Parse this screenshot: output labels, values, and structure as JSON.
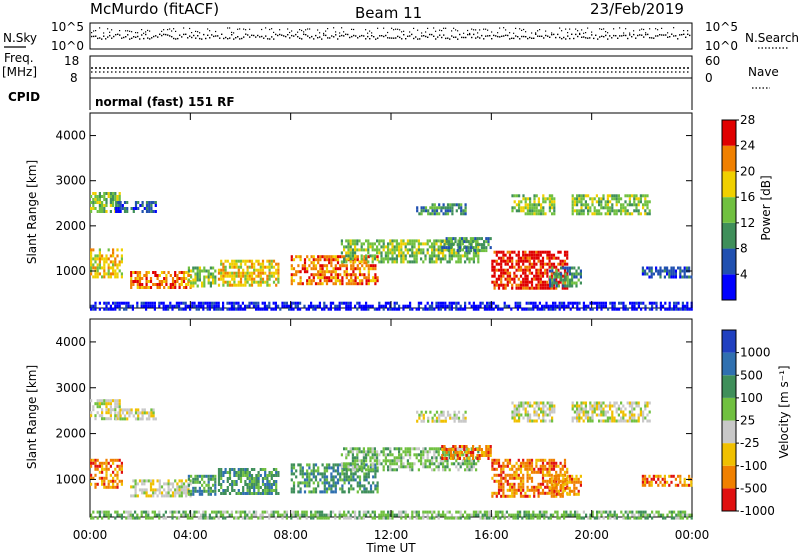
{
  "header": {
    "station": "McMurdo  (fitACF)",
    "beam": "Beam 11",
    "date": "23/Feb/2019"
  },
  "top_panels": {
    "nsky_label": "N.Sky",
    "nsky_ticks": [
      "10^5",
      "10^0"
    ],
    "nsearch_label": "N.Search",
    "nsearch_ticks": [
      "10^5",
      "10^0"
    ],
    "freq_label": "Freq.",
    "freq_unit": "[MHz]",
    "freq_ticks": [
      "18",
      "8"
    ],
    "nave_label": "Nave",
    "nave_ticks": [
      "60",
      "0"
    ],
    "cpid_label": "CPID",
    "cpid_text": "normal (fast) 151 RF"
  },
  "chart_data": [
    {
      "type": "heatmap",
      "panel": "power",
      "ylabel": "Slant Range [km]",
      "xlabel": "",
      "ylim": [
        180,
        4500
      ],
      "y_ticks": [
        1000,
        2000,
        3000,
        4000
      ],
      "x_ticks": [
        "00:00",
        "04:00",
        "08:00",
        "12:00",
        "16:00",
        "20:00",
        "00:00"
      ],
      "xlim_hours": [
        0,
        24
      ],
      "colorbar": {
        "label": "Power [dB]",
        "ticks": [
          "4",
          "8",
          "12",
          "16",
          "20",
          "24",
          "28"
        ],
        "colors": [
          "#0000ff",
          "#2050b0",
          "#3f8f5a",
          "#70c040",
          "#f0d000",
          "#f08000",
          "#e00000"
        ]
      },
      "regions": [
        {
          "t0": 0.0,
          "t1": 1.2,
          "r0": 2350,
          "r1": 2750,
          "level": 3
        },
        {
          "t0": 1.0,
          "t1": 2.6,
          "r0": 2300,
          "r1": 2550,
          "level": 1
        },
        {
          "t0": 0.0,
          "t1": 1.3,
          "r0": 850,
          "r1": 1500,
          "level": 4
        },
        {
          "t0": 1.6,
          "t1": 4.0,
          "r0": 650,
          "r1": 1000,
          "level": 5
        },
        {
          "t0": 3.9,
          "t1": 5.0,
          "r0": 700,
          "r1": 1100,
          "level": 3
        },
        {
          "t0": 5.1,
          "t1": 7.5,
          "r0": 700,
          "r1": 1250,
          "level": 4
        },
        {
          "t0": 8.0,
          "t1": 11.5,
          "r0": 750,
          "r1": 1350,
          "level": 5
        },
        {
          "t0": 10.0,
          "t1": 15.5,
          "r0": 1200,
          "r1": 1700,
          "level": 3
        },
        {
          "t0": 14.0,
          "t1": 16.0,
          "r0": 1450,
          "r1": 1750,
          "level": 2
        },
        {
          "t0": 13.0,
          "t1": 15.0,
          "r0": 2300,
          "r1": 2500,
          "level": 2
        },
        {
          "t0": 16.8,
          "t1": 18.5,
          "r0": 2250,
          "r1": 2700,
          "level": 3
        },
        {
          "t0": 19.2,
          "t1": 22.3,
          "r0": 2250,
          "r1": 2700,
          "level": 3
        },
        {
          "t0": 16.0,
          "t1": 19.0,
          "r0": 650,
          "r1": 1450,
          "level": 6
        },
        {
          "t0": 18.3,
          "t1": 19.6,
          "r0": 700,
          "r1": 1100,
          "level": 2
        },
        {
          "t0": 22.0,
          "t1": 24.0,
          "r0": 900,
          "r1": 1100,
          "level": 1
        },
        {
          "t0": 0.0,
          "t1": 24.0,
          "r0": 180,
          "r1": 320,
          "level": 0
        }
      ]
    },
    {
      "type": "heatmap",
      "panel": "velocity",
      "ylabel": "Slant Range [km]",
      "xlabel": "Time UT",
      "ylim": [
        180,
        4500
      ],
      "y_ticks": [
        1000,
        2000,
        3000,
        4000
      ],
      "x_ticks": [
        "00:00",
        "04:00",
        "08:00",
        "12:00",
        "16:00",
        "20:00",
        "00:00"
      ],
      "xlim_hours": [
        0,
        24
      ],
      "colorbar": {
        "label": "Velocity [m s⁻¹]",
        "ticks": [
          "1000",
          "500",
          "100",
          "25",
          "-25",
          "-100",
          "-500",
          "-1000"
        ],
        "colors": [
          "#2040c0",
          "#3070b0",
          "#3f8f5a",
          "#70c040",
          "#c8c8c8",
          "#f0c000",
          "#f08000",
          "#e01010"
        ]
      },
      "regions": [
        {
          "t0": 0.0,
          "t1": 1.2,
          "r0": 2350,
          "r1": 2750,
          "level": 4
        },
        {
          "t0": 1.0,
          "t1": 2.6,
          "r0": 2300,
          "r1": 2550,
          "level": 4
        },
        {
          "t0": 0.0,
          "t1": 1.3,
          "r0": 850,
          "r1": 1450,
          "level": 6
        },
        {
          "t0": 1.6,
          "t1": 4.0,
          "r0": 650,
          "r1": 1000,
          "level": 4
        },
        {
          "t0": 3.9,
          "t1": 5.0,
          "r0": 700,
          "r1": 1100,
          "level": 2
        },
        {
          "t0": 5.1,
          "t1": 7.5,
          "r0": 700,
          "r1": 1250,
          "level": 2
        },
        {
          "t0": 8.0,
          "t1": 11.5,
          "r0": 750,
          "r1": 1350,
          "level": 2
        },
        {
          "t0": 10.0,
          "t1": 15.5,
          "r0": 1200,
          "r1": 1700,
          "level": 3
        },
        {
          "t0": 14.0,
          "t1": 16.0,
          "r0": 1450,
          "r1": 1750,
          "level": 6
        },
        {
          "t0": 13.0,
          "t1": 15.0,
          "r0": 2300,
          "r1": 2500,
          "level": 4
        },
        {
          "t0": 16.8,
          "t1": 18.5,
          "r0": 2250,
          "r1": 2700,
          "level": 4
        },
        {
          "t0": 19.2,
          "t1": 22.3,
          "r0": 2250,
          "r1": 2700,
          "level": 4
        },
        {
          "t0": 16.0,
          "t1": 19.0,
          "r0": 650,
          "r1": 1450,
          "level": 6
        },
        {
          "t0": 18.3,
          "t1": 19.6,
          "r0": 700,
          "r1": 1100,
          "level": 6
        },
        {
          "t0": 22.0,
          "t1": 24.0,
          "r0": 900,
          "r1": 1100,
          "level": 6
        },
        {
          "t0": 0.0,
          "t1": 24.0,
          "r0": 180,
          "r1": 320,
          "level": 3
        }
      ]
    }
  ]
}
